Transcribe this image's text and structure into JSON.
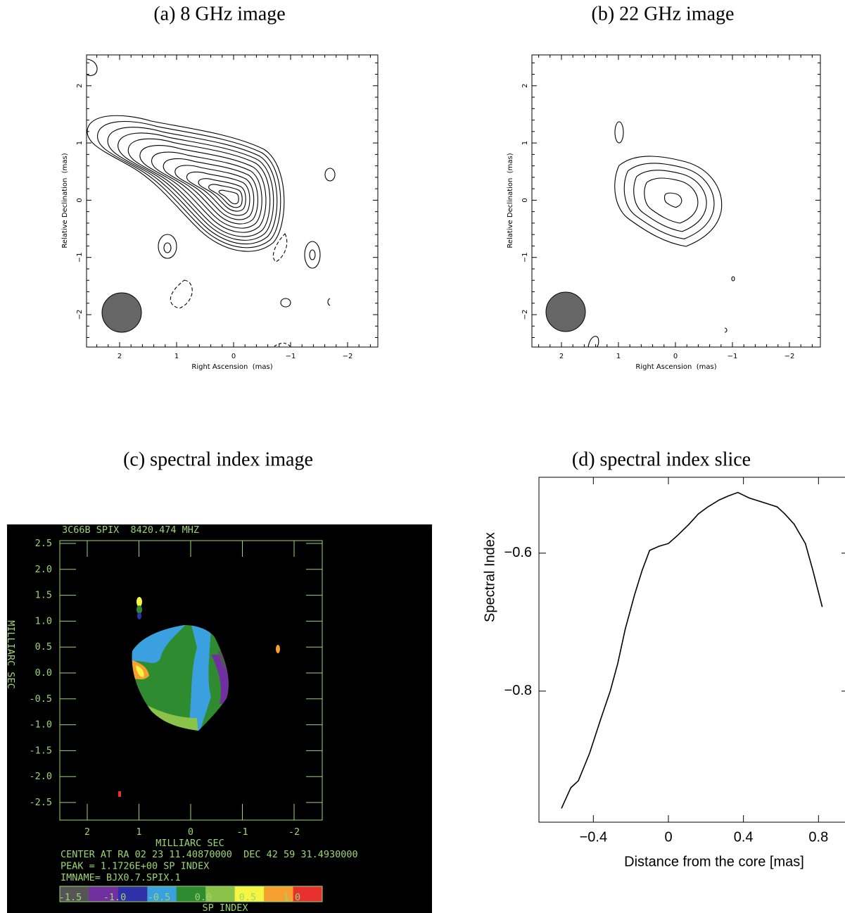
{
  "panels": [
    {
      "caption": "(a) 8 GHz image",
      "xlabel": "Right Ascension  (mas)",
      "ylabel": "Relative Declination  (mas)",
      "xticks": [
        "2",
        "1",
        "0",
        "−1",
        "−2"
      ],
      "yticks": [
        "−2",
        "−1",
        "0",
        "1",
        "2"
      ]
    },
    {
      "caption": "(b) 22 GHz image",
      "xlabel": "Right Ascension  (mas)",
      "ylabel": "Relative Declination  (mas)",
      "xticks": [
        "2",
        "1",
        "0",
        "−1",
        "−2"
      ],
      "yticks": [
        "−2",
        "−1",
        "0",
        "1",
        "2"
      ]
    },
    {
      "caption": "(c) spectral index image",
      "title": "3C66B SPIX  8420.474 MHZ",
      "side_label": "MILLIARC SEC",
      "yticks": [
        "2.5",
        "2.0",
        "1.5",
        "1.0",
        "0.5",
        "0.0",
        "-0.5",
        "-1.0",
        "-1.5",
        "-2.0",
        "-2.5"
      ],
      "xticks": [
        "2",
        "1",
        "0",
        "-1",
        "-2"
      ],
      "xlabel": "MILLIARC SEC",
      "info": [
        "CENTER AT RA 02 23 11.40870000  DEC 42 59 31.4930000",
        "PEAK = 1.1726E+00 SP INDEX",
        "IMNAME= BJX0.7.SPIX.1"
      ],
      "colorbar_colors": [
        "#555555",
        "#7030a0",
        "#3030a8",
        "#3aa0e0",
        "#2e8b30",
        "#8bc34a",
        "#f5f542",
        "#f5a030",
        "#e83030"
      ],
      "colorbar_ticks": [
        "-1.5",
        "-1.0",
        "-0.5",
        "0.0",
        "0.5",
        "1.0"
      ],
      "colorbar_label": "SP INDEX"
    }
  ],
  "chart_data": {
    "type": "line",
    "title": "(d) spectral index slice",
    "x_label": "Distance from the core [mas]",
    "y_label": "Spectral Index",
    "x": [
      -0.57,
      -0.52,
      -0.48,
      -0.42,
      -0.36,
      -0.31,
      -0.27,
      -0.23,
      -0.18,
      -0.14,
      -0.1,
      -0.05,
      0.0,
      0.05,
      0.11,
      0.16,
      0.21,
      0.27,
      0.32,
      0.37,
      0.43,
      0.5,
      0.58,
      0.62,
      0.67,
      0.73,
      0.77,
      0.82
    ],
    "series": [
      {
        "name": "Spectral Index",
        "color": "#000000",
        "values": [
          -0.97,
          -0.94,
          -0.93,
          -0.89,
          -0.84,
          -0.8,
          -0.76,
          -0.71,
          -0.66,
          -0.625,
          -0.596,
          -0.59,
          -0.586,
          -0.574,
          -0.558,
          -0.543,
          -0.533,
          -0.523,
          -0.517,
          -0.512,
          -0.52,
          -0.526,
          -0.533,
          -0.543,
          -0.558,
          -0.586,
          -0.625,
          -0.678
        ]
      }
    ],
    "xlim": [
      -0.69,
      0.96
    ],
    "ylim": [
      -0.99,
      -0.49
    ],
    "xticks": [
      {
        "value": -0.4,
        "label": "−0.4"
      },
      0,
      0.4,
      0.8
    ],
    "yticks": [
      {
        "value": -0.8,
        "label": "−0.8"
      },
      {
        "value": -0.6,
        "label": "−0.6"
      }
    ]
  }
}
